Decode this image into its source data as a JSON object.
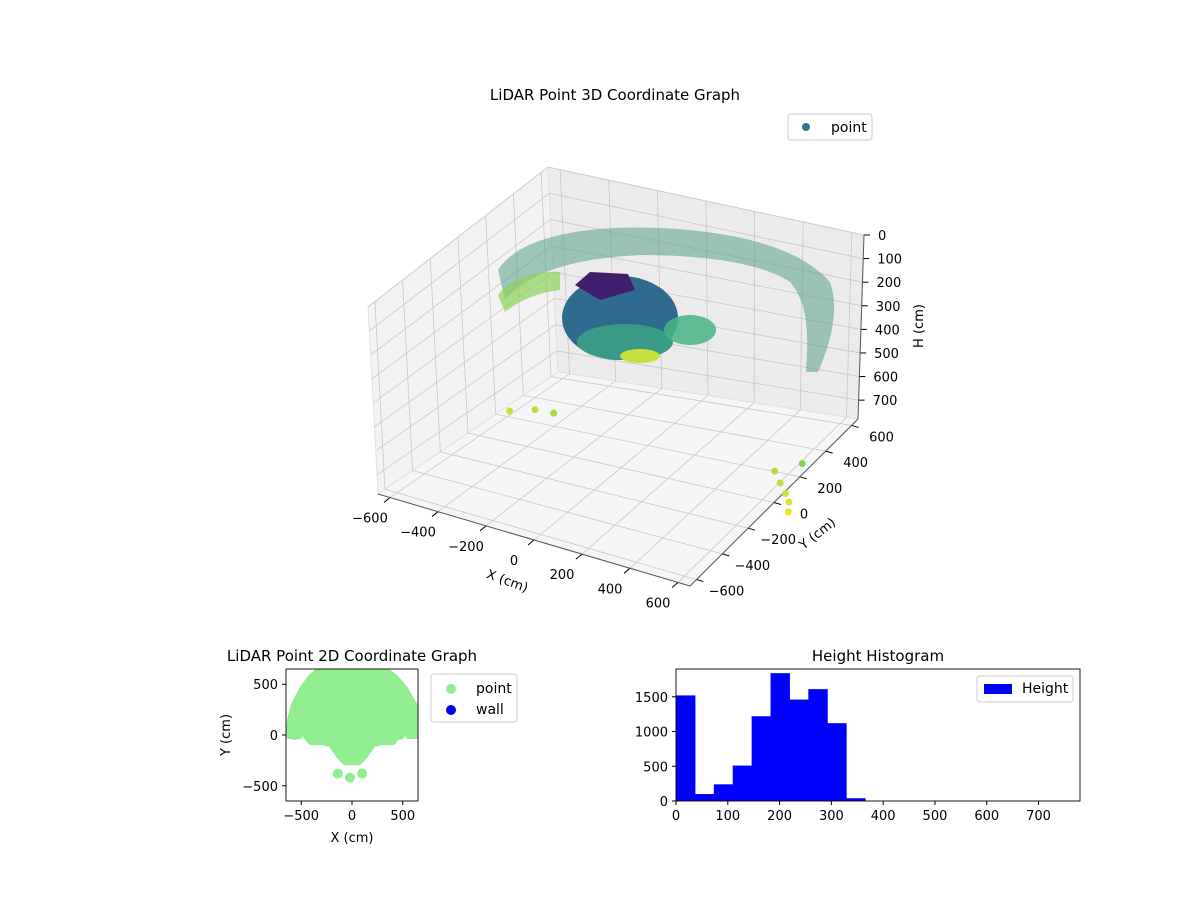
{
  "chart_data": [
    {
      "type": "scatter",
      "projection": "3d",
      "title": "LiDAR Point 3D Coordinate Graph",
      "xlabel": "X (cm)",
      "ylabel": "Y (cm)",
      "zlabel": "H (cm)",
      "x_ticks": [
        "−600",
        "−400",
        "−200",
        "0",
        "200",
        "400",
        "600"
      ],
      "y_ticks": [
        "−600",
        "−400",
        "−200",
        "0",
        "200",
        "400",
        "600"
      ],
      "z_ticks": [
        "0",
        "100",
        "200",
        "300",
        "400",
        "500",
        "600",
        "700"
      ],
      "xlim": [
        -650,
        650
      ],
      "ylim": [
        -650,
        650
      ],
      "zlim": [
        0,
        780
      ],
      "z_inverted": true,
      "colormap": "viridis",
      "legend": {
        "placement": "top-right",
        "entries": [
          {
            "name": "point",
            "color": "#2c7b8a"
          }
        ]
      },
      "series": [
        {
          "name": "point",
          "points": [
            {
              "x": -560,
              "y": 150,
              "h": 720
            },
            {
              "x": -470,
              "y": 180,
              "h": 700
            },
            {
              "x": -380,
              "y": 160,
              "h": 680
            },
            {
              "x": 500,
              "y": 230,
              "h": 690
            },
            {
              "x": 545,
              "y": 190,
              "h": 710
            },
            {
              "x": 590,
              "y": 150,
              "h": 725
            },
            {
              "x": 620,
              "y": 120,
              "h": 740
            },
            {
              "x": 600,
              "y": 260,
              "h": 640
            },
            {
              "x": 640,
              "y": 80,
              "h": 760
            }
          ]
        }
      ]
    },
    {
      "type": "scatter",
      "title": "LiDAR Point 2D Coordinate Graph",
      "xlabel": "X (cm)",
      "ylabel": "Y (cm)",
      "xlim": [
        -650,
        650
      ],
      "ylim": [
        -650,
        650
      ],
      "x_ticks": [
        -500,
        0,
        500
      ],
      "y_ticks": [
        -500,
        0,
        500
      ],
      "legend": {
        "placement": "outside-right",
        "entries": [
          {
            "name": "point",
            "color": "#90ee90"
          },
          {
            "name": "wall",
            "color": "#0000ff"
          }
        ]
      },
      "series": [
        {
          "name": "point",
          "color": "#90ee90",
          "outline": [
            [
              -620,
              0
            ],
            [
              -600,
              150
            ],
            [
              -560,
              300
            ],
            [
              -480,
              450
            ],
            [
              -400,
              560
            ],
            [
              -300,
              650
            ],
            [
              300,
              650
            ],
            [
              420,
              560
            ],
            [
              520,
              440
            ],
            [
              600,
              300
            ],
            [
              650,
              150
            ],
            [
              650,
              0
            ],
            [
              560,
              0
            ],
            [
              520,
              60
            ],
            [
              450,
              20
            ],
            [
              400,
              -60
            ],
            [
              300,
              -60
            ],
            [
              200,
              -80
            ],
            [
              120,
              -200
            ],
            [
              60,
              -260
            ],
            [
              -60,
              -260
            ],
            [
              -120,
              -200
            ],
            [
              -200,
              -80
            ],
            [
              -300,
              -60
            ],
            [
              -400,
              -60
            ],
            [
              -460,
              20
            ],
            [
              -520,
              60
            ],
            [
              -600,
              0
            ]
          ],
          "points": [
            {
              "x": -140,
              "y": -380
            },
            {
              "x": -20,
              "y": -420
            },
            {
              "x": 100,
              "y": -380
            },
            {
              "x": -570,
              "y": 0
            },
            {
              "x": -530,
              "y": 5
            },
            {
              "x": 420,
              "y": 0
            },
            {
              "x": 470,
              "y": 0
            }
          ]
        },
        {
          "name": "wall",
          "color": "#0000ff",
          "points": []
        }
      ]
    },
    {
      "type": "bar",
      "subtype": "histogram",
      "title": "Height Histogram",
      "xlim": [
        0,
        780
      ],
      "ylim": [
        0,
        1900
      ],
      "x_ticks": [
        0,
        100,
        200,
        300,
        400,
        500,
        600,
        700
      ],
      "y_ticks": [
        0,
        500,
        1000,
        1500
      ],
      "legend": {
        "placement": "top-right",
        "entries": [
          {
            "name": "Height",
            "color": "#0000ff"
          }
        ]
      },
      "series": [
        {
          "name": "Height",
          "color": "#0000ff",
          "bin_width": 36.5,
          "bin_starts": [
            0,
            36.5,
            73,
            109.5,
            146,
            182.5,
            219,
            255.5,
            292,
            328.5
          ],
          "values": [
            1520,
            100,
            240,
            510,
            1220,
            1840,
            1460,
            1610,
            1120,
            40
          ]
        }
      ]
    }
  ]
}
